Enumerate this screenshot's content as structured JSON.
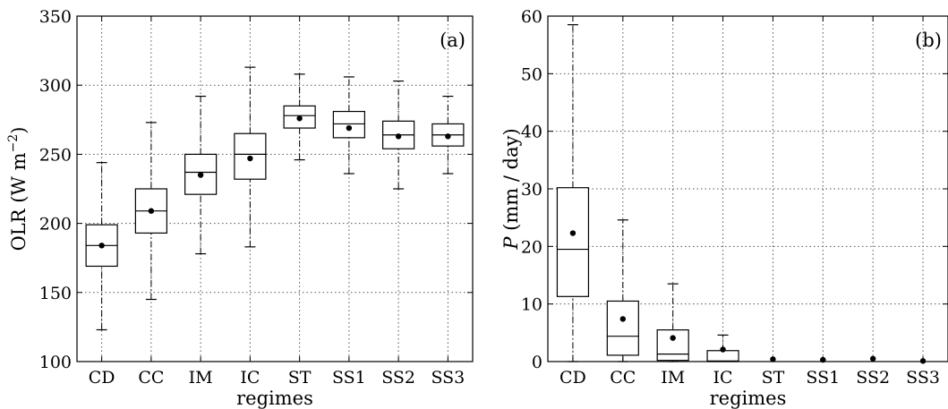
{
  "chart_data": [
    {
      "type": "box",
      "panel_label": "(a)",
      "xlabel": "regimes",
      "ylabel": "OLR (W m",
      "ylabel_superscript": "−2",
      "ylabel_close": ")",
      "ylim": [
        100,
        350
      ],
      "yticks": [
        100,
        150,
        200,
        250,
        300,
        350
      ],
      "grid": true,
      "categories": [
        "CD",
        "CC",
        "IM",
        "IC",
        "ST",
        "SS1",
        "SS2",
        "SS3"
      ],
      "boxes": [
        {
          "whisker_low": 123,
          "q1": 169,
          "median": 184,
          "q3": 199,
          "whisker_high": 244,
          "mean": 184
        },
        {
          "whisker_low": 145,
          "q1": 193,
          "median": 209,
          "q3": 225,
          "whisker_high": 273,
          "mean": 209
        },
        {
          "whisker_low": 178,
          "q1": 221,
          "median": 237,
          "q3": 250,
          "whisker_high": 292,
          "mean": 235
        },
        {
          "whisker_low": 183,
          "q1": 232,
          "median": 250,
          "q3": 265,
          "whisker_high": 313,
          "mean": 247
        },
        {
          "whisker_low": 246,
          "q1": 269,
          "median": 278,
          "q3": 285,
          "whisker_high": 308,
          "mean": 276
        },
        {
          "whisker_low": 236,
          "q1": 262,
          "median": 272,
          "q3": 281,
          "whisker_high": 306,
          "mean": 269
        },
        {
          "whisker_low": 225,
          "q1": 254,
          "median": 264,
          "q3": 274,
          "whisker_high": 303,
          "mean": 263
        },
        {
          "whisker_low": 236,
          "q1": 256,
          "median": 264,
          "q3": 272,
          "whisker_high": 292,
          "mean": 263
        }
      ]
    },
    {
      "type": "box",
      "panel_label": "(b)",
      "xlabel": "regimes",
      "ylabel_italic": "P",
      "ylabel": " (mm / day)",
      "ylim": [
        0,
        60
      ],
      "yticks": [
        0,
        10,
        20,
        30,
        40,
        50,
        60
      ],
      "grid": true,
      "categories": [
        "CD",
        "CC",
        "IM",
        "IC",
        "ST",
        "SS1",
        "SS2",
        "SS3"
      ],
      "boxes": [
        {
          "whisker_low": 0,
          "q1": 11.3,
          "median": 19.5,
          "q3": 30.2,
          "whisker_high": 58.5,
          "mean": 22.3
        },
        {
          "whisker_low": 0,
          "q1": 1.1,
          "median": 4.4,
          "q3": 10.5,
          "whisker_high": 24.6,
          "mean": 7.4
        },
        {
          "whisker_low": 0,
          "q1": 0.2,
          "median": 1.3,
          "q3": 5.5,
          "whisker_high": 13.5,
          "mean": 4.1
        },
        {
          "whisker_low": 0,
          "q1": 0,
          "median": 0.1,
          "q3": 1.9,
          "whisker_high": 4.6,
          "mean": 2.1
        },
        {
          "whisker_low": 0,
          "q1": 0,
          "median": 0,
          "q3": 0,
          "whisker_high": 0,
          "mean": 0.4
        },
        {
          "whisker_low": 0,
          "q1": 0,
          "median": 0,
          "q3": 0,
          "whisker_high": 0,
          "mean": 0.3
        },
        {
          "whisker_low": 0,
          "q1": 0,
          "median": 0,
          "q3": 0,
          "whisker_high": 0,
          "mean": 0.5
        },
        {
          "whisker_low": 0,
          "q1": 0,
          "median": 0,
          "q3": 0,
          "whisker_high": 0,
          "mean": 0.1
        }
      ]
    }
  ]
}
